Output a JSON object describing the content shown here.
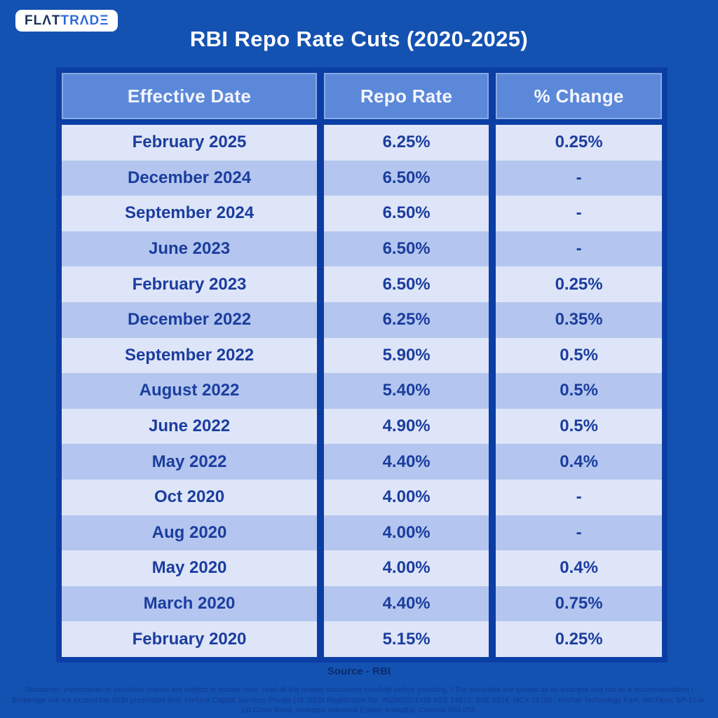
{
  "brand": {
    "logo_part1": "FLΛT",
    "logo_part2": "TRΛDΞ"
  },
  "title": "RBI Repo Rate Cuts (2020-2025)",
  "table": {
    "headers": [
      "Effective Date",
      "Repo Rate",
      "% Change"
    ],
    "rows": [
      [
        "February 2025",
        "6.25%",
        "0.25%"
      ],
      [
        "December 2024",
        "6.50%",
        "-"
      ],
      [
        "September 2024",
        "6.50%",
        "-"
      ],
      [
        "June 2023",
        "6.50%",
        "-"
      ],
      [
        "February 2023",
        "6.50%",
        "0.25%"
      ],
      [
        "December 2022",
        "6.25%",
        "0.35%"
      ],
      [
        "September 2022",
        "5.90%",
        "0.5%"
      ],
      [
        "August 2022",
        "5.40%",
        "0.5%"
      ],
      [
        "June 2022",
        "4.90%",
        "0.5%"
      ],
      [
        "May 2022",
        "4.40%",
        "0.4%"
      ],
      [
        "Oct 2020",
        "4.00%",
        "-"
      ],
      [
        "Aug 2020",
        "4.00%",
        "-"
      ],
      [
        "May 2020",
        "4.00%",
        "0.4%"
      ],
      [
        "March 2020",
        "4.40%",
        "0.75%"
      ],
      [
        "February 2020",
        "5.15%",
        "0.25%"
      ]
    ]
  },
  "footer": {
    "source": "Source - RBI",
    "disclaimer": "Disclaimer: investments in securities market are subject to market risks, read all the related documents carefully before investing. I The securities are quoted as an example and not as a recommendation I Brokerage will not exceed the SEBI prescribed limit. Fortune Capital Services Private Ltd.  SEBI Registration No. INZ000201438 NSE 14572, BSE 6524, MCX 16765 . Kochar Technology Park, 6th Floor, SP-31-A, 1st Cross Road, Ambattur Industrial Estate, Ambattur, Chennai 600 058."
  },
  "colors": {
    "background": "#1452B2",
    "table_border": "#0B3EA4",
    "header_fill": "#5C88D9",
    "header_border": "#87AAE3",
    "row_light": "#DEE5F8",
    "row_dark": "#B4C6EF",
    "cell_text": "#1B3D9E",
    "header_text": "#F3F6FE",
    "title_text": "#FFFFFF",
    "logo_navy": "#1C2F5C",
    "logo_blue": "#2E6CD8"
  },
  "chart_data": {
    "type": "table",
    "title": "RBI Repo Rate Cuts (2020-2025)",
    "columns": [
      "Effective Date",
      "Repo Rate",
      "% Change"
    ],
    "categories": [
      "February 2025",
      "December 2024",
      "September 2024",
      "June 2023",
      "February 2023",
      "December 2022",
      "September 2022",
      "August 2022",
      "June 2022",
      "May 2022",
      "Oct 2020",
      "Aug 2020",
      "May 2020",
      "March 2020",
      "February 2020"
    ],
    "series": [
      {
        "name": "Repo Rate (%)",
        "values": [
          6.25,
          6.5,
          6.5,
          6.5,
          6.5,
          6.25,
          5.9,
          5.4,
          4.9,
          4.4,
          4.0,
          4.0,
          4.0,
          4.4,
          5.15
        ]
      },
      {
        "name": "% Change",
        "values": [
          0.25,
          null,
          null,
          null,
          0.25,
          0.35,
          0.5,
          0.5,
          0.5,
          0.4,
          null,
          null,
          0.4,
          0.75,
          0.25
        ]
      }
    ],
    "source": "Source - RBI",
    "legend_position": "none",
    "grid": false
  }
}
